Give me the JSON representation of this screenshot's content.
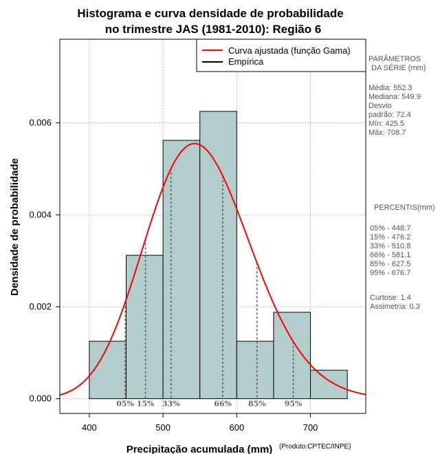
{
  "title": {
    "line1": "Histograma e curva densidade de probabilidade",
    "line2": "no trimestre JAS (1981-2010): Região 6"
  },
  "credit": "(Produto:CPTEC/INPE)",
  "colors": {
    "bar_fill": "#b3cccc",
    "curve": "#ff0000",
    "grid": "#bbbbbb",
    "panel_text": "#555555"
  },
  "chart_data": {
    "type": "bar",
    "title": "Histograma e curva densidade de probabilidade no trimestre JAS (1981-2010): Região 6",
    "xlabel": "Precipitação acumulada (mm)",
    "ylabel": "Densidade de probabilidade",
    "xlim": [
      360,
      775
    ],
    "ylim": [
      -0.00032,
      0.00782
    ],
    "grid": true,
    "x_ticks": [
      400,
      500,
      600,
      700
    ],
    "x_tick_labels": [
      "400",
      "500",
      "600",
      "700"
    ],
    "y_ticks": [
      0,
      0.002,
      0.004,
      0.006
    ],
    "y_tick_labels": [
      "0.000",
      "0.002",
      "0.004",
      "0.006"
    ],
    "bins": [
      {
        "from": 400,
        "to": 450,
        "density": 0.00125
      },
      {
        "from": 450,
        "to": 500,
        "density": 0.00312
      },
      {
        "from": 500,
        "to": 550,
        "density": 0.00562
      },
      {
        "from": 550,
        "to": 600,
        "density": 0.00625
      },
      {
        "from": 600,
        "to": 650,
        "density": 0.00125
      },
      {
        "from": 650,
        "to": 700,
        "density": 0.00188
      },
      {
        "from": 700,
        "to": 750,
        "density": 0.00062
      }
    ],
    "gamma_fit": {
      "mean": 552.3,
      "sd": 72.4
    },
    "percentile_markers": [
      {
        "label": "05%",
        "value": 448.7
      },
      {
        "label": "15%",
        "value": 476.2
      },
      {
        "label": "33%",
        "value": 510.8
      },
      {
        "label": "66%",
        "value": 581.1
      },
      {
        "label": "85%",
        "value": 627.5
      },
      {
        "label": "95%",
        "value": 676.7
      }
    ],
    "legend": {
      "position": "top-right",
      "entries": [
        {
          "label": "Curva ajustada (função Gama)",
          "color": "#ff0000"
        },
        {
          "label": "Empírica",
          "color": "#000000"
        }
      ]
    }
  },
  "side_panel": {
    "parameters_heading": "PARÂMETROS",
    "parameters_unit": "DA SÉRIE (mm)",
    "parameters": [
      "Média:  552.3",
      "Mediana:  549.9",
      "Desvio",
      "padrão:  72.4",
      "Mín:  425.5",
      "Máx:  708.7"
    ],
    "percentiles_heading": "PERCENTIS(mm)",
    "percentiles": [
      "05% -  448.7",
      "15% -  476.2",
      "33% -  510.8",
      "66% -  581.1",
      "85% -  627.5",
      "95% -  676.7"
    ],
    "stats": [
      "Curtose:  1.4",
      "Assimetria:  0.3"
    ]
  }
}
